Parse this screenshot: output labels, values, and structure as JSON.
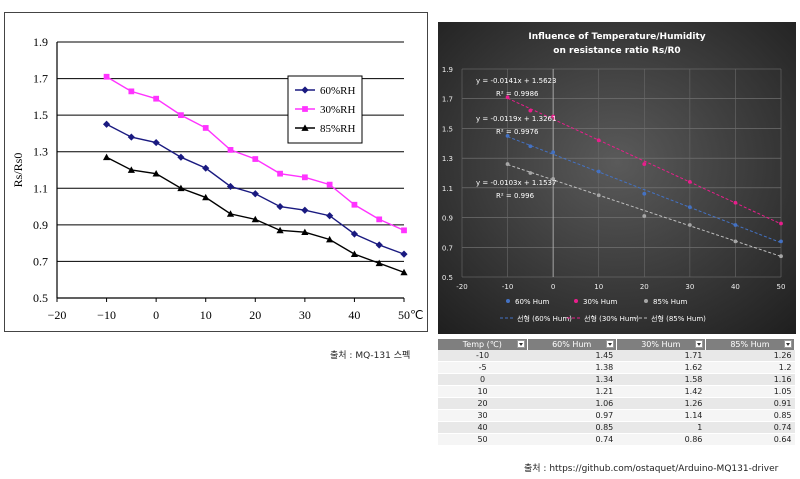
{
  "chart_data": [
    {
      "type": "line",
      "title": "",
      "xlabel": "",
      "ylabel": "Rs/Rs0",
      "x_unit_label": "℃",
      "xlim": [
        -20,
        50
      ],
      "ylim": [
        0.5,
        1.9
      ],
      "x_ticks": [
        "−20",
        "−10",
        "0",
        "10",
        "20",
        "30",
        "40",
        "50"
      ],
      "y_ticks": [
        "0.5",
        "0.7",
        "0.9",
        "1.1",
        "1.3",
        "1.5",
        "1.7",
        "1.9"
      ],
      "legend": "top-right",
      "grid": true,
      "x": [
        -10,
        -5,
        0,
        5,
        10,
        15,
        20,
        25,
        30,
        35,
        40,
        45,
        50
      ],
      "series": [
        {
          "name": "60%RH",
          "marker": "diamond",
          "color": "#1a1a80",
          "values": [
            1.45,
            1.38,
            1.35,
            1.27,
            1.21,
            1.11,
            1.07,
            1.0,
            0.98,
            0.95,
            0.85,
            0.79,
            0.74
          ]
        },
        {
          "name": "30%RH",
          "marker": "square",
          "color": "#ff33ff",
          "values": [
            1.71,
            1.63,
            1.59,
            1.5,
            1.43,
            1.31,
            1.26,
            1.18,
            1.16,
            1.12,
            1.01,
            0.93,
            0.87
          ]
        },
        {
          "name": "85%RH",
          "marker": "triangle",
          "color": "#000000",
          "values": [
            1.27,
            1.2,
            1.18,
            1.1,
            1.05,
            0.96,
            0.93,
            0.87,
            0.86,
            0.82,
            0.74,
            0.69,
            0.64
          ]
        }
      ]
    },
    {
      "type": "scatter",
      "title": "Influence of Temperature/Humidity",
      "subtitle": "on resistance ratio Rs/R0",
      "xlim": [
        -20,
        50
      ],
      "ylim": [
        0.5,
        1.9
      ],
      "x_ticks": [
        "-20",
        "-10",
        "0",
        "10",
        "20",
        "30",
        "40",
        "50"
      ],
      "y_ticks": [
        "0.5",
        "0.7",
        "0.9",
        "1.1",
        "1.3",
        "1.5",
        "1.7",
        "1.9"
      ],
      "legend": "bottom",
      "grid": true,
      "x": [
        -10,
        -5,
        0,
        10,
        20,
        30,
        40,
        50
      ],
      "series": [
        {
          "name": "60% Hum",
          "color": "#4472c4",
          "values": [
            1.45,
            1.38,
            1.34,
            1.21,
            1.06,
            0.97,
            0.85,
            0.74
          ]
        },
        {
          "name": "30% Hum",
          "color": "#e91e8c",
          "values": [
            1.71,
            1.62,
            1.58,
            1.42,
            1.26,
            1.14,
            1.0,
            0.86
          ]
        },
        {
          "name": "85% Hum",
          "color": "#a6a6a6",
          "values": [
            1.26,
            1.2,
            1.16,
            1.05,
            0.91,
            0.85,
            0.74,
            0.64
          ]
        }
      ],
      "trendlines": [
        {
          "name": "선형 (60% Hum)",
          "color": "#4472c4",
          "slope": -0.0119,
          "intercept": 1.3261,
          "equation": "y = -0.0119x + 1.3261",
          "r2": "R² = 0.9976"
        },
        {
          "name": "선형 (30% Hum)",
          "color": "#e91e8c",
          "slope": -0.0141,
          "intercept": 1.5623,
          "equation": "y = -0.0141x + 1.5623",
          "r2": "R² = 0.9986"
        },
        {
          "name": "선형 (85% Hum)",
          "color": "#bfbfbf",
          "slope": -0.0103,
          "intercept": 1.1537,
          "equation": "y = -0.0103x + 1.1537",
          "r2": "R² = 0.996"
        }
      ]
    }
  ],
  "table": {
    "headers": [
      "Temp (℃)",
      "60% Hum",
      "30% Hum",
      "85% Hum"
    ],
    "rows": [
      [
        "-10",
        "1.45",
        "1.71",
        "1.26"
      ],
      [
        "-5",
        "1.38",
        "1.62",
        "1.2"
      ],
      [
        "0",
        "1.34",
        "1.58",
        "1.16"
      ],
      [
        "10",
        "1.21",
        "1.42",
        "1.05"
      ],
      [
        "20",
        "1.06",
        "1.26",
        "0.91"
      ],
      [
        "30",
        "0.97",
        "1.14",
        "0.85"
      ],
      [
        "40",
        "0.85",
        "1",
        "0.74"
      ],
      [
        "50",
        "0.74",
        "0.86",
        "0.64"
      ]
    ]
  },
  "captions": {
    "left": "출처 : MQ-131 스펙",
    "right": "출처 : https://github.com/ostaquet/Arduino-MQ131-driver"
  }
}
